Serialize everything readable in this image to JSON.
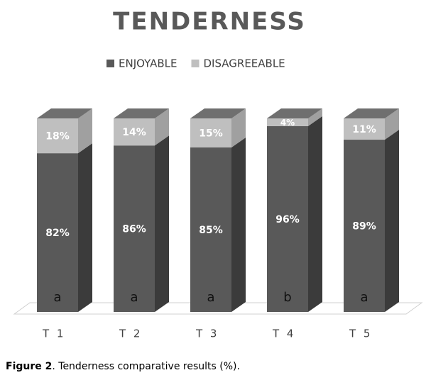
{
  "chart_data": {
    "type": "stacked-bar-3d",
    "title": "TENDERNESS",
    "categories": [
      "T 1",
      "T 2",
      "T 3",
      "T 4",
      "T 5"
    ],
    "series": [
      {
        "name": "ENJOYABLE",
        "color": "#595959",
        "side_color": "#3b3b3b",
        "values": [
          82,
          86,
          85,
          96,
          89
        ],
        "value_labels": [
          "82%",
          "86%",
          "85%",
          "96%",
          "89%"
        ]
      },
      {
        "name": "DISAGREEABLE",
        "color": "#bfbfbf",
        "side_color": "#a0a0a0",
        "values": [
          18,
          14,
          15,
          4,
          11
        ],
        "value_labels": [
          "18%",
          "14%",
          "15%",
          "4%",
          "11%"
        ]
      }
    ],
    "letters": [
      "a",
      "a",
      "a",
      "b",
      "a"
    ]
  },
  "caption": {
    "label": "Figure 2",
    "text": ". Tenderness comparative results (%)."
  }
}
